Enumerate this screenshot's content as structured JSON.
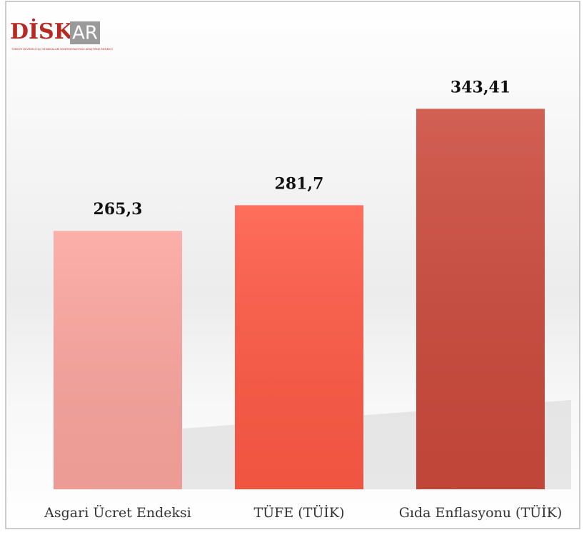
{
  "logo": {
    "main": "DİSK",
    "accent": "AR",
    "subtitle": "TÜRKİYE DEVRİMCİ İŞÇİ SENDİKALARI KONFEDERASYONU ARAŞTIRMA MERKEZİ"
  },
  "chart_data": {
    "type": "bar",
    "categories": [
      "Asgari Ücret Endeksi",
      "TÜFE (TÜİK)",
      "Gıda Enflasyonu (TÜİK)"
    ],
    "values": [
      265.3,
      281.7,
      343.41
    ],
    "value_labels": [
      "265,3",
      "281,7",
      "343,41"
    ],
    "colors": [
      "#fca59e",
      "#ff5a45",
      "#cc4a3c"
    ],
    "ylim": [
      100,
      360
    ]
  }
}
